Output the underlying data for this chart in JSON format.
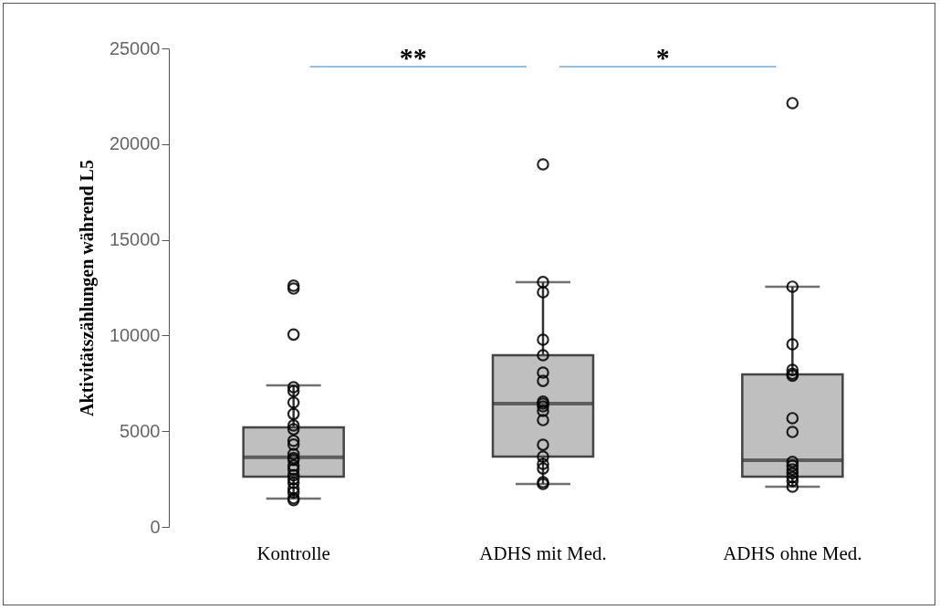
{
  "chart_data": {
    "type": "box",
    "ylabel": "Aktivitätszählungen während L5",
    "categories": [
      "Kontrolle",
      "ADHS mit Med.",
      "ADHS ohne Med."
    ],
    "boxes": [
      {
        "low": 1480,
        "q1": 2620,
        "median": 3640,
        "q3": 5200,
        "high": 7400
      },
      {
        "low": 2240,
        "q1": 3670,
        "median": 6440,
        "q3": 8970,
        "high": 12790
      },
      {
        "low": 2100,
        "q1": 2620,
        "median": 3480,
        "q3": 7970,
        "high": 12550
      }
    ],
    "color": "#bfbfbf",
    "series": [
      {
        "type": "scatter",
        "x": [
          "Kontrolle",
          "Kontrolle",
          "Kontrolle",
          "Kontrolle",
          "Kontrolle",
          "Kontrolle",
          "Kontrolle",
          "Kontrolle",
          "Kontrolle",
          "Kontrolle",
          "Kontrolle",
          "Kontrolle",
          "Kontrolle",
          "Kontrolle",
          "Kontrolle",
          "Kontrolle",
          "Kontrolle",
          "Kontrolle",
          "Kontrolle",
          "Kontrolle",
          "Kontrolle",
          "Kontrolle",
          "Kontrolle",
          "ADHS mit Med.",
          "ADHS mit Med.",
          "ADHS mit Med.",
          "ADHS mit Med.",
          "ADHS mit Med.",
          "ADHS mit Med.",
          "ADHS mit Med.",
          "ADHS mit Med.",
          "ADHS mit Med.",
          "ADHS mit Med.",
          "ADHS mit Med.",
          "ADHS mit Med.",
          "ADHS mit Med.",
          "ADHS mit Med.",
          "ADHS mit Med.",
          "ADHS mit Med.",
          "ADHS mit Med.",
          "ADHS mit Med.",
          "ADHS ohne Med.",
          "ADHS ohne Med.",
          "ADHS ohne Med.",
          "ADHS ohne Med.",
          "ADHS ohne Med.",
          "ADHS ohne Med.",
          "ADHS ohne Med.",
          "ADHS ohne Med.",
          "ADHS ohne Med.",
          "ADHS ohne Med.",
          "ADHS ohne Med.",
          "ADHS ohne Med.",
          "ADHS ohne Med.",
          "ADHS ohne Med.",
          "ADHS ohne Med."
        ],
        "values": [
          12600,
          12450,
          10050,
          7300,
          7100,
          6500,
          5900,
          5300,
          5100,
          4500,
          4300,
          3800,
          3600,
          3500,
          3200,
          3000,
          2700,
          2500,
          2300,
          2000,
          1800,
          1500,
          1400,
          18940,
          12790,
          12260,
          9780,
          8970,
          8060,
          7630,
          6540,
          6440,
          6300,
          6060,
          5580,
          4290,
          3670,
          3290,
          3050,
          2340,
          2240,
          22140,
          12550,
          9540,
          8200,
          8000,
          7900,
          5680,
          4960,
          3400,
          3200,
          3000,
          2800,
          2600,
          2400,
          2100
        ],
        "color": "#000000"
      }
    ],
    "marker": "circle",
    "ylim": [
      0,
      25000
    ],
    "yticks": [
      0,
      5000,
      10000,
      15000,
      20000,
      25000
    ],
    "annotations": [
      "**",
      "*"
    ],
    "grid": false
  }
}
